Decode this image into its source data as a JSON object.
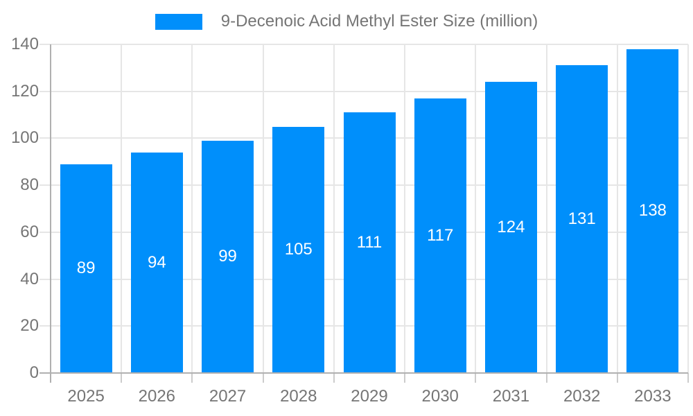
{
  "legend": {
    "label": "9-Decenoic Acid Methyl Ester Size (million)"
  },
  "colors": {
    "bar": "#008FFB",
    "legend_text": "#757575",
    "tick_text": "#757575",
    "grid": "#e6e6e6",
    "axis": "#b0b0b0",
    "minor_tick": "#cccccc",
    "value_label": "#ffffff",
    "background": "#ffffff"
  },
  "chart_data": {
    "type": "bar",
    "title": "9-Decenoic Acid Methyl Ester Size (million)",
    "categories": [
      "2025",
      "2026",
      "2027",
      "2028",
      "2029",
      "2030",
      "2031",
      "2032",
      "2033"
    ],
    "values": [
      89,
      94,
      99,
      105,
      111,
      117,
      124,
      131,
      138
    ],
    "xlabel": "",
    "ylabel": "",
    "ylim": [
      0,
      140
    ],
    "ytick_step": 20,
    "yticks": [
      0,
      20,
      40,
      60,
      80,
      100,
      120,
      140
    ],
    "grid": true,
    "legend_position": "top",
    "value_label_position": "inside-center",
    "series_name": "9-Decenoic Acid Methyl Ester Size (million)"
  }
}
